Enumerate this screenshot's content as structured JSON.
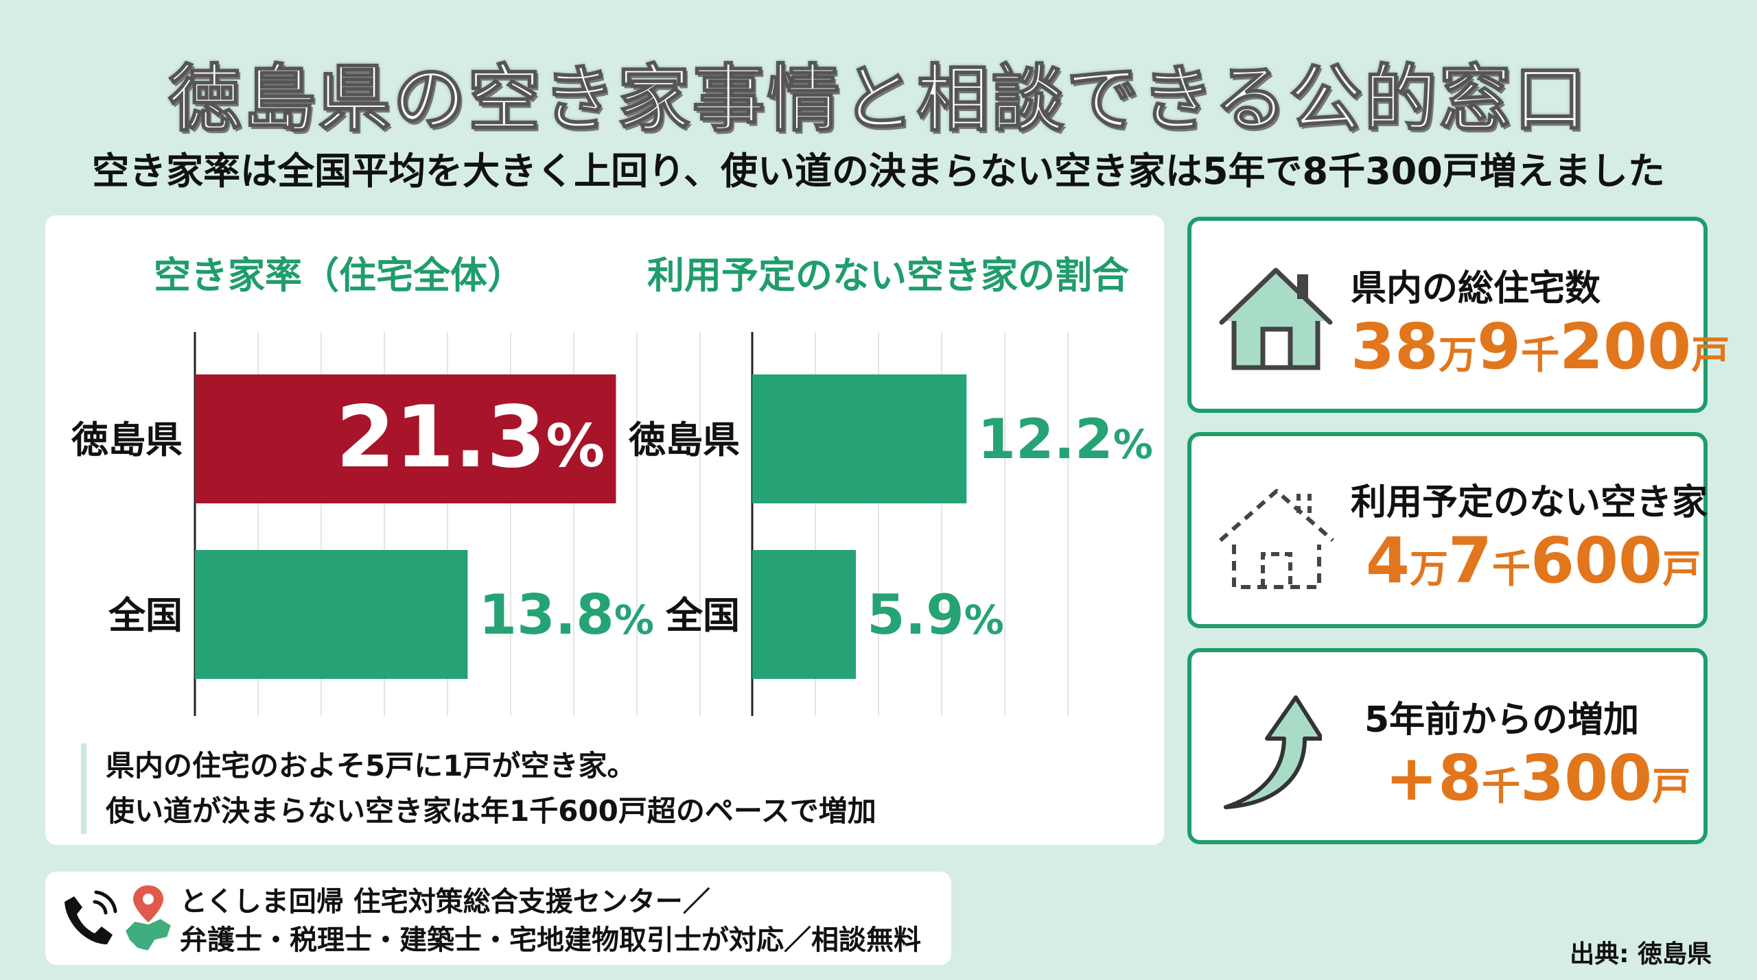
{
  "title": "徳島県の空き家事情と相談できる公的窓口",
  "subtitle": "空き家率は全国平均を大きく上回り、使い道の決まらない空き家は5年で8千300戸増えました",
  "chart_data": [
    {
      "type": "bar",
      "orientation": "horizontal",
      "title": "空き家率（住宅全体）",
      "categories": [
        "徳島県",
        "全国"
      ],
      "values": [
        21.3,
        13.8
      ],
      "labels": [
        "21.3",
        "13.8"
      ],
      "unit": "%",
      "xlim": [
        0,
        25
      ],
      "grid": true,
      "colors": [
        "#a8142a",
        "#26a374"
      ]
    },
    {
      "type": "bar",
      "orientation": "horizontal",
      "title": "利用予定のない空き家の割合",
      "categories": [
        "徳島県",
        "全国"
      ],
      "values": [
        12.2,
        5.9
      ],
      "labels": [
        "12.2",
        "5.9"
      ],
      "unit": "%",
      "xlim": [
        0,
        20
      ],
      "grid": true,
      "colors": [
        "#26a374",
        "#26a374"
      ]
    }
  ],
  "note": {
    "line1": "県内の住宅のおよそ5戸に1戸が空き家。",
    "line2": "使い道が決まらない空き家は年1千600戸超のペースで増加"
  },
  "stats": [
    {
      "label": "県内の総住宅数",
      "icon": "house-icon",
      "parts": [
        {
          "text": "38",
          "size": "big"
        },
        {
          "text": "万",
          "size": "small"
        },
        {
          "text": "9",
          "size": "big"
        },
        {
          "text": "千",
          "size": "small"
        },
        {
          "text": "200",
          "size": "big"
        },
        {
          "text": "戸",
          "size": "small"
        }
      ]
    },
    {
      "label": "利用予定のない空き家",
      "icon": "dashed-house-icon",
      "parts": [
        {
          "text": "4",
          "size": "big"
        },
        {
          "text": "万",
          "size": "small"
        },
        {
          "text": "7",
          "size": "big"
        },
        {
          "text": "千",
          "size": "small"
        },
        {
          "text": "600",
          "size": "big"
        },
        {
          "text": "戸",
          "size": "small"
        }
      ]
    },
    {
      "label": "5年前からの増加",
      "icon": "up-arrow-icon",
      "parts": [
        {
          "text": "+8",
          "size": "big"
        },
        {
          "text": "千",
          "size": "small"
        },
        {
          "text": "300",
          "size": "big"
        },
        {
          "text": "戸",
          "size": "small"
        }
      ]
    }
  ],
  "contact": {
    "line1": "とくしま回帰 住宅対策総合支援センター／",
    "line2": "弁護士・税理士・建築士・宅地建物取引士が対応／相談無料"
  },
  "source": "出典: 徳島県",
  "colors": {
    "accent_green": "#1f9d6b",
    "bar_green": "#26a374",
    "bar_red": "#a8142a",
    "value_orange": "#e2761c",
    "background": "#d5ede5"
  }
}
